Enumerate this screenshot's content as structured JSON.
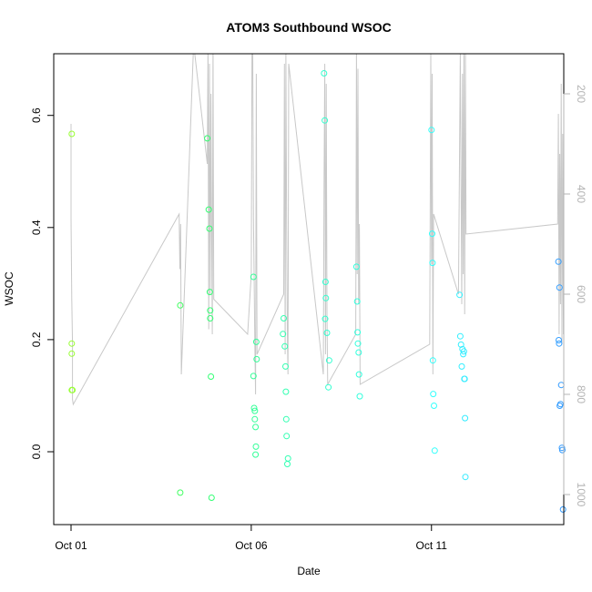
{
  "chart_data": {
    "type": "scatter",
    "title": "ATOM3 Southbound WSOC",
    "xlabel": "Date",
    "ylabel": "WSOC",
    "x_ticks": [
      {
        "day": 1,
        "label": "Oct 01"
      },
      {
        "day": 6,
        "label": "Oct 06"
      },
      {
        "day": 11,
        "label": "Oct 11"
      }
    ],
    "y_ticks": [
      "0.0",
      "0.2",
      "0.4",
      "0.6"
    ],
    "y_tick_values": [
      0.0,
      0.2,
      0.4,
      0.6
    ],
    "y2_ticks": [
      "200",
      "400",
      "600",
      "800",
      "1000"
    ],
    "y2_tick_values": [
      200,
      400,
      600,
      800,
      1000
    ],
    "xlim": [
      0.52,
      14.67
    ],
    "ylim": [
      -0.13,
      0.71
    ],
    "y2lim": [
      1060,
      120
    ],
    "y2_reversed": true,
    "grid": false,
    "legend": "none",
    "colors": {
      "line": "#c8c8c8",
      "right_axis": "#b4b4b4",
      "points_gradient": [
        "#99ff33",
        "#33ff66",
        "#33ffcc",
        "#33ffff",
        "#3399ff"
      ]
    },
    "series": [
      {
        "type": "points",
        "x": [
          1.02,
          1.02,
          1.02,
          1.02,
          1.04,
          4.03,
          4.03,
          4.78,
          4.82,
          4.84,
          4.85,
          4.86,
          4.86,
          4.88,
          4.9,
          6.06,
          6.06,
          6.08,
          6.1,
          6.1,
          6.12,
          6.12,
          6.13,
          6.14,
          6.15,
          6.88,
          6.9,
          6.93,
          6.95,
          6.96,
          6.97,
          6.98,
          7.0,
          7.02,
          8.02,
          8.04,
          8.05,
          8.06,
          8.07,
          8.1,
          8.14,
          8.16,
          8.92,
          8.94,
          8.95,
          8.96,
          8.98,
          8.99,
          9.01,
          11.0,
          11.02,
          11.03,
          11.04,
          11.05,
          11.07,
          11.09,
          11.78,
          11.8,
          11.82,
          11.84,
          11.86,
          11.88,
          11.9,
          11.91,
          11.92,
          11.93,
          11.94,
          14.52,
          14.53,
          14.54,
          14.55,
          14.56,
          14.58,
          14.6,
          14.62,
          14.63,
          14.65
        ],
        "y": [
          0.567,
          0.193,
          0.175,
          0.11,
          0.11,
          0.261,
          -0.073,
          0.559,
          0.432,
          0.398,
          0.285,
          0.252,
          0.238,
          0.134,
          -0.082,
          0.312,
          0.135,
          0.078,
          0.073,
          0.058,
          0.044,
          -0.005,
          0.009,
          0.196,
          0.165,
          0.21,
          0.238,
          0.188,
          0.152,
          0.107,
          0.058,
          0.028,
          -0.022,
          -0.012,
          0.675,
          0.591,
          0.237,
          0.303,
          0.274,
          0.212,
          0.115,
          0.163,
          0.33,
          0.268,
          0.213,
          0.193,
          0.177,
          0.138,
          0.099,
          0.574,
          0.389,
          0.337,
          0.163,
          0.103,
          0.082,
          0.002,
          0.28,
          0.206,
          0.191,
          0.152,
          0.183,
          0.174,
          0.179,
          0.13,
          0.13,
          0.06,
          -0.045,
          0.339,
          0.199,
          0.193,
          0.293,
          0.082,
          0.085,
          0.119,
          0.007,
          0.003,
          -0.103
        ]
      },
      {
        "type": "line",
        "axis": "right",
        "x": [
          1.0,
          1.0,
          1.0,
          1.02,
          1.04,
          1.04,
          1.06,
          4.0,
          4.02,
          4.04,
          4.06,
          4.4,
          4.78,
          4.8,
          4.82,
          4.84,
          4.86,
          4.88,
          4.9,
          4.92,
          4.94,
          4.96,
          5.9,
          6.0,
          6.02,
          6.04,
          6.06,
          6.08,
          6.1,
          6.12,
          6.14,
          6.16,
          6.9,
          6.92,
          6.94,
          6.96,
          6.98,
          7.0,
          7.02,
          7.04,
          8.0,
          8.02,
          8.04,
          8.06,
          8.08,
          8.1,
          8.12,
          8.9,
          8.92,
          8.94,
          8.96,
          8.98,
          9.0,
          9.02,
          10.95,
          10.98,
          11.0,
          11.02,
          11.04,
          11.06,
          11.75,
          11.8,
          11.84,
          11.86,
          11.88,
          11.9,
          11.92,
          11.94,
          11.96,
          14.5,
          14.52,
          14.54,
          14.56,
          14.58,
          14.6,
          14.62,
          14.64,
          14.66
        ],
        "y": [
          350,
          260,
          450,
          610,
          700,
          810,
          820,
          440,
          550,
          460,
          760,
          100,
          340,
          100,
          670,
          140,
          600,
          200,
          450,
          680,
          100,
          610,
          680,
          560,
          100,
          120,
          450,
          560,
          700,
          800,
          160,
          720,
          600,
          140,
          720,
          120,
          460,
          680,
          760,
          140,
          760,
          380,
          140,
          720,
          180,
          640,
          780,
          680,
          110,
          560,
          150,
          620,
          460,
          780,
          700,
          120,
          540,
          160,
          760,
          440,
          600,
          120,
          620,
          160,
          560,
          100,
          640,
          120,
          480,
          460,
          240,
          680,
          320,
          620,
          180,
          700,
          280,
          680
        ]
      }
    ]
  }
}
